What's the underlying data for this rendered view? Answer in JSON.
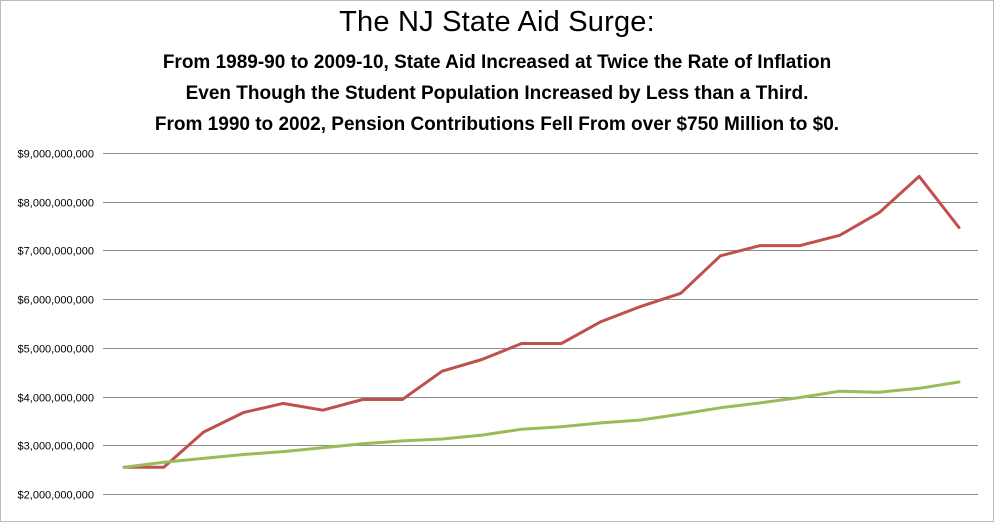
{
  "chart_data": {
    "type": "line",
    "title": "The NJ State Aid Surge:",
    "subtitle_lines": [
      "From 1989-90 to 2009-10, State Aid Increased at Twice the Rate of Inflation",
      "Even Though the Student Population Increased by Less than a Third.",
      "From 1990 to 2002, Pension Contributions Fell From over $750 Million to $0."
    ],
    "xlabel": "",
    "ylabel": "",
    "ylim": [
      2000000000,
      9000000000
    ],
    "yticks": [
      9000000000,
      8000000000,
      7000000000,
      6000000000,
      5000000000,
      4000000000,
      3000000000,
      2000000000
    ],
    "ytick_labels": [
      "$9,000,000,000",
      "$8,000,000,000",
      "$7,000,000,000",
      "$6,000,000,000",
      "$5,000,000,000",
      "$4,000,000,000",
      "$3,000,000,000",
      "$2,000,000,000"
    ],
    "grid": true,
    "legend": "none",
    "series": [
      {
        "color": "#c0504d",
        "values": [
          2550000000,
          2550000000,
          3270000000,
          3670000000,
          3860000000,
          3720000000,
          3940000000,
          3940000000,
          4520000000,
          4760000000,
          5090000000,
          5090000000,
          5540000000,
          5850000000,
          6120000000,
          6890000000,
          7100000000,
          7100000000,
          7310000000,
          7780000000,
          8520000000,
          7470000000
        ]
      },
      {
        "color": "#9bbb59",
        "values": [
          2550000000,
          2650000000,
          2730000000,
          2810000000,
          2870000000,
          2950000000,
          3030000000,
          3090000000,
          3130000000,
          3210000000,
          3330000000,
          3380000000,
          3460000000,
          3520000000,
          3640000000,
          3770000000,
          3870000000,
          3980000000,
          4110000000,
          4090000000,
          4170000000,
          4300000000
        ]
      }
    ]
  }
}
